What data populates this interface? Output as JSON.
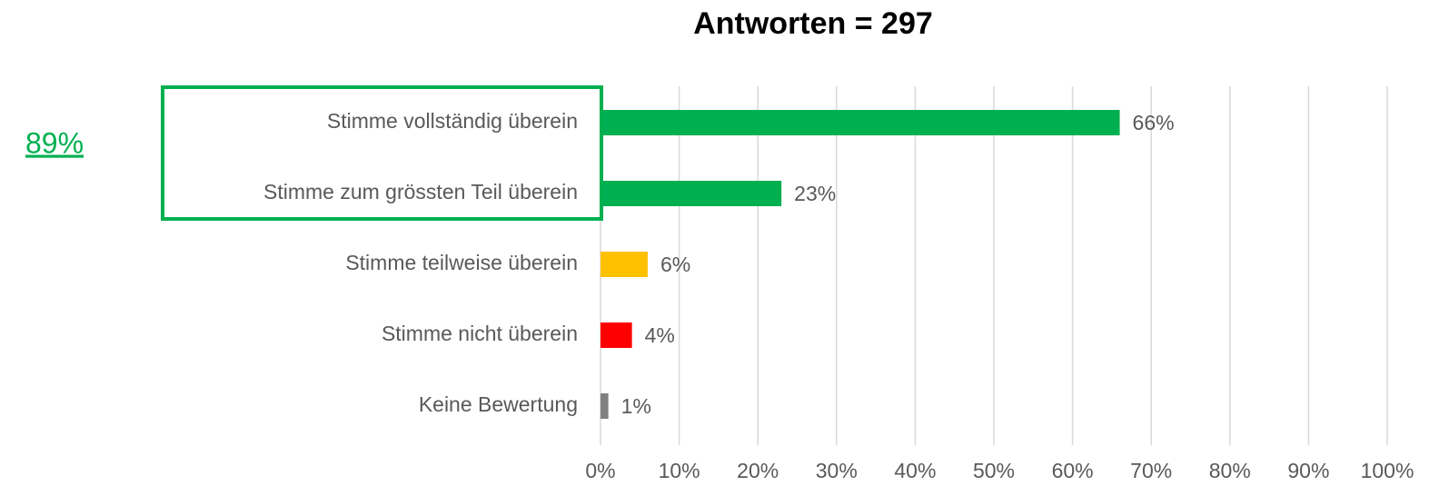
{
  "chart_data": {
    "type": "barh",
    "title": "Antworten = 297",
    "annotation": "89%",
    "categories": [
      "Stimme vollständig überein",
      "Stimme zum grössten Teil überein",
      "Stimme teilweise überein",
      "Stimme nicht überein",
      "Keine Bewertung"
    ],
    "values": [
      66,
      23,
      6,
      4,
      1
    ],
    "value_labels": [
      "66%",
      "23%",
      "6%",
      "4%",
      "1%"
    ],
    "colors": [
      "#00b050",
      "#00b050",
      "#ffc000",
      "#ff0000",
      "#808080"
    ],
    "xlim": [
      0,
      100
    ],
    "xticks": [
      {
        "value": 0,
        "label": "0%"
      },
      {
        "value": 10,
        "label": "10%"
      },
      {
        "value": 20,
        "label": "20%"
      },
      {
        "value": 30,
        "label": "30%"
      },
      {
        "value": 40,
        "label": "40%"
      },
      {
        "value": 50,
        "label": "50%"
      },
      {
        "value": 60,
        "label": "60%"
      },
      {
        "value": 70,
        "label": "70%"
      },
      {
        "value": 80,
        "label": "80%"
      },
      {
        "value": 90,
        "label": "90%"
      },
      {
        "value": 100,
        "label": "100%"
      }
    ],
    "grid": true
  }
}
